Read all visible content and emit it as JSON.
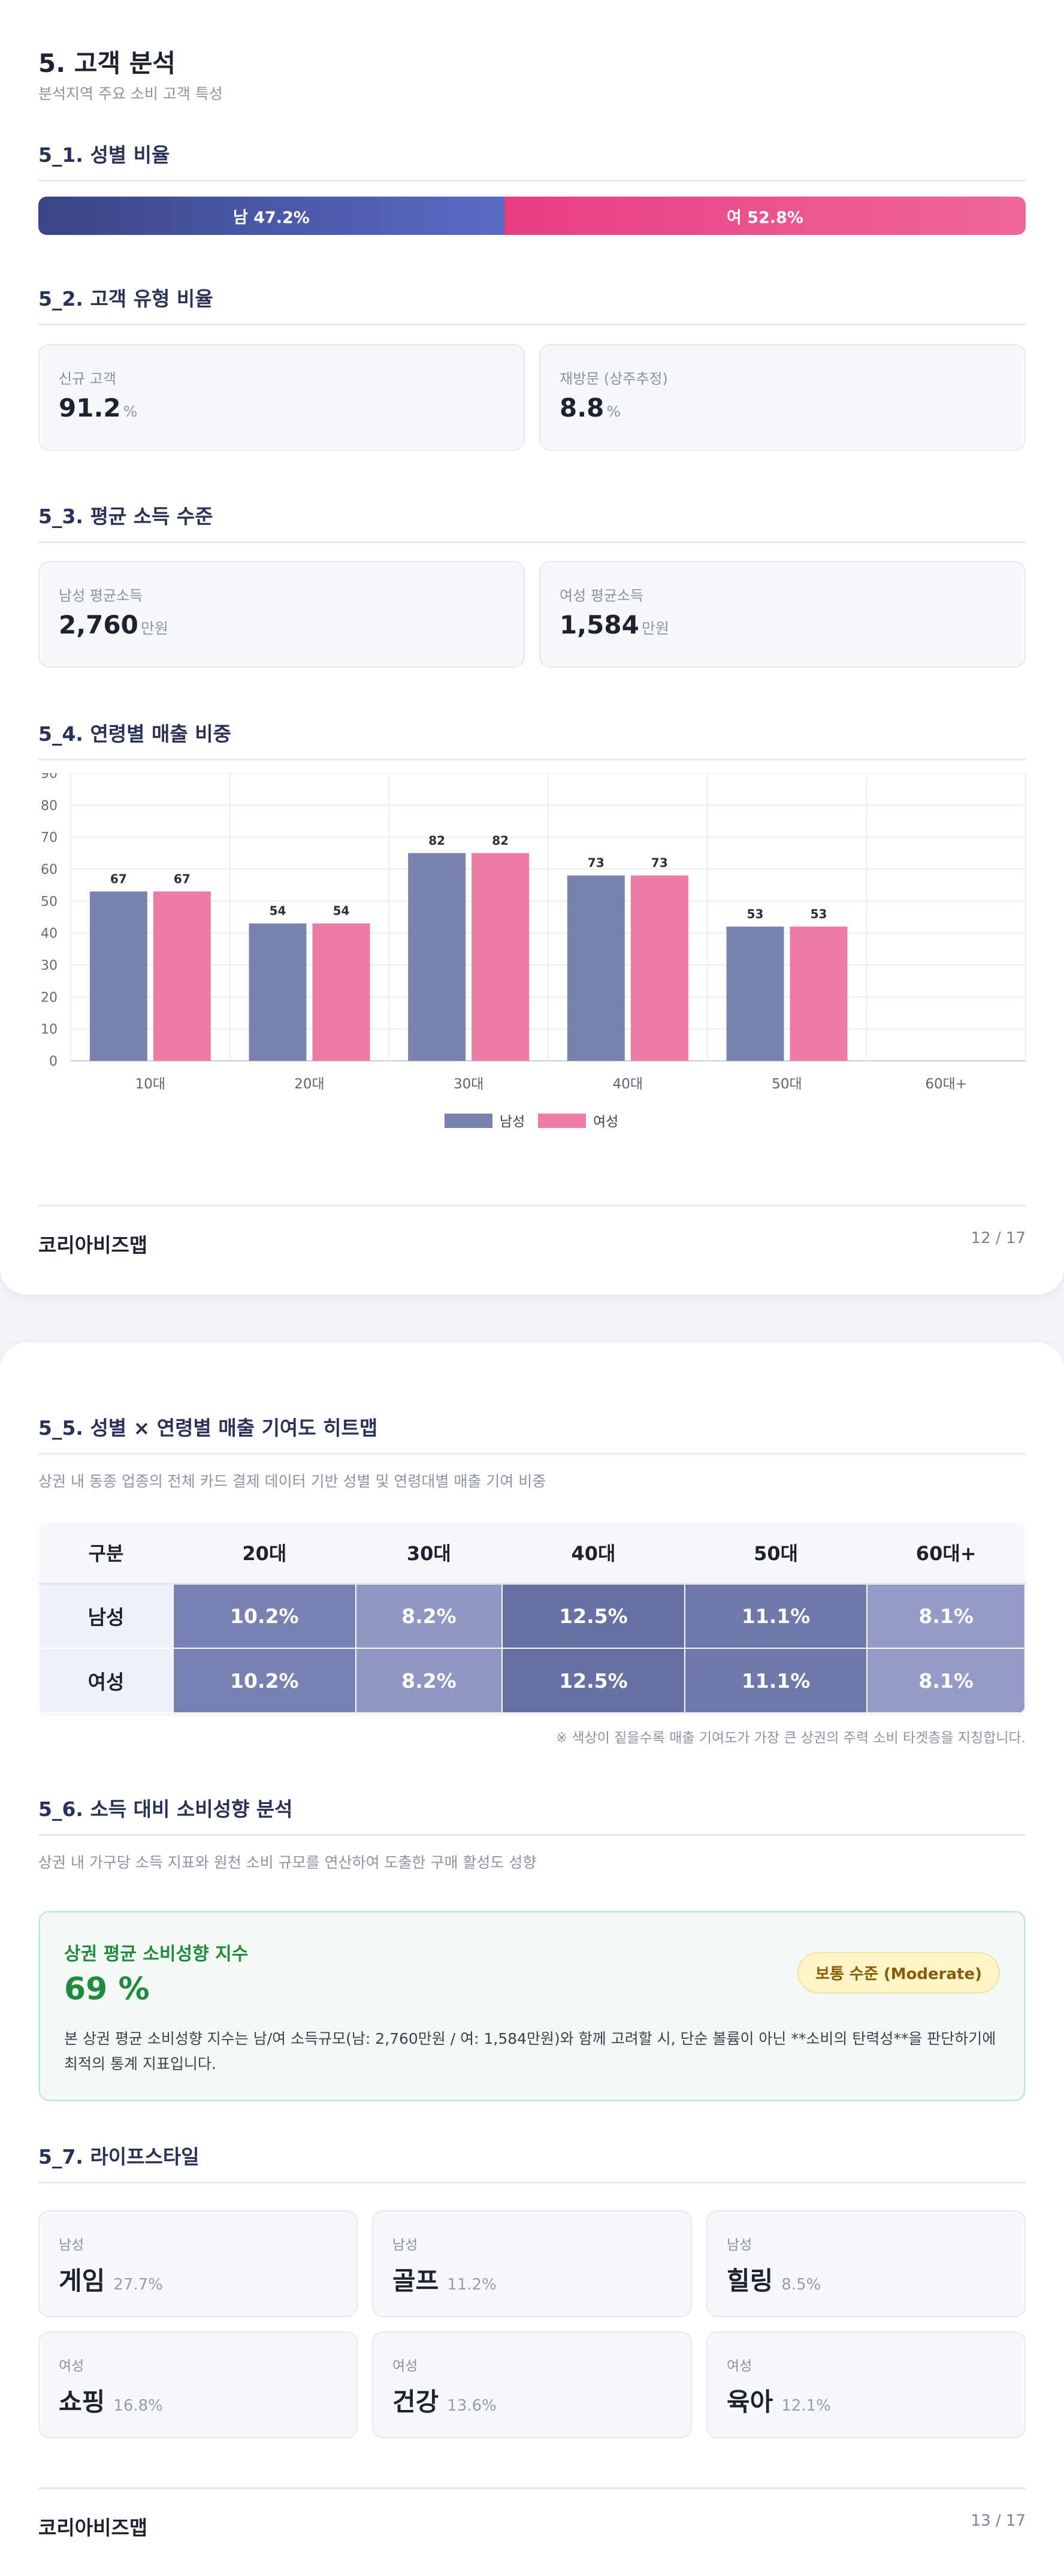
{
  "page1": {
    "title": "5. 고객 분석",
    "subtitle": "분석지역 주요 소비 고객 특성",
    "gender_ratio": {
      "heading": "5_1. 성별 비율",
      "male_label": "남 47.2%",
      "female_label": "여 52.8%",
      "male_share": 47.2,
      "female_share": 52.8,
      "male_color": "#3d4a8f",
      "female_color": "#ec4f86"
    },
    "customer_type": {
      "heading": "5_2. 고객 유형 비율",
      "items": [
        {
          "label": "신규 고객",
          "value": "91.2",
          "unit": "%"
        },
        {
          "label": "재방문 (상주추정)",
          "value": "8.8",
          "unit": "%"
        }
      ]
    },
    "income": {
      "heading": "5_3. 평균 소득 수준",
      "items": [
        {
          "label": "남성 평균소득",
          "value": "2,760",
          "unit": "만원"
        },
        {
          "label": "여성 평균소득",
          "value": "1,584",
          "unit": "만원"
        }
      ]
    },
    "age_sales": {
      "heading": "5_4. 연령별 매출 비중"
    },
    "footer": {
      "brand": "코리아비즈맵",
      "page": "12 / 17"
    }
  },
  "chart_data": {
    "type": "bar",
    "categories": [
      "10대",
      "20대",
      "30대",
      "40대",
      "50대",
      "60대+"
    ],
    "series": [
      {
        "name": "남성",
        "values": [
          67,
          54,
          82,
          73,
          53,
          null
        ],
        "color": "#7a83af"
      },
      {
        "name": "여성",
        "values": [
          67,
          54,
          82,
          73,
          53,
          null
        ],
        "color": "#ef7aa6"
      }
    ],
    "data_labels": [
      67,
      54,
      82,
      73,
      53
    ],
    "bar_heights": [
      53,
      43,
      65,
      58,
      42
    ],
    "ylim": [
      0,
      90
    ],
    "yticks": [
      0,
      10,
      20,
      30,
      40,
      50,
      60,
      70,
      80,
      90
    ],
    "title": "",
    "xlabel": "",
    "ylabel": "",
    "grid": true,
    "legend": "bottom-center"
  },
  "page2": {
    "heatmap": {
      "heading": "5_5. 성별 × 연령별 매출 기여도 히트맵",
      "desc": "상권 내 동종 업종의 전체 카드 결제 데이터 기반 성별 및 연령대별 매출 기여 비중",
      "corner": "구분",
      "columns": [
        "20대",
        "30대",
        "40대",
        "50대",
        "60대+"
      ],
      "rows": [
        {
          "label": "남성",
          "cells": [
            "10.2%",
            "8.2%",
            "12.5%",
            "11.1%",
            "8.1%"
          ]
        },
        {
          "label": "여성",
          "cells": [
            "10.2%",
            "8.2%",
            "12.5%",
            "11.1%",
            "8.1%"
          ]
        }
      ],
      "cell_colors": [
        "#7a82b3",
        "#9097c2",
        "#6870a5",
        "#7077aa",
        "#959bc4"
      ],
      "note": "※ 색상이 짙을수록 매출 기여도가 가장 큰 상권의 주력 소비 타겟층을 지칭합니다."
    },
    "propensity": {
      "heading": "5_6. 소득 대비 소비성향 분석",
      "desc": "상권 내 가구당 소득 지표와 원천 소비 규모를 연산하여 도출한 구매 활성도 성향",
      "card_title": "상권 평균 소비성향 지수",
      "value": "69 %",
      "badge": "보통 수준 (Moderate)",
      "text": "본 상권 평균 소비성향 지수는 남/여 소득규모(남: 2,760만원 / 여: 1,584만원)와 함께 고려할 시, 단순 볼륨이 아닌 **소비의 탄력성**을 판단하기에 최적의 통계 지표입니다.",
      "accent": "#1e8b3d"
    },
    "lifestyle": {
      "heading": "5_7. 라이프스타일",
      "items": [
        {
          "tag": "남성",
          "name": "게임",
          "pct": "27.7%"
        },
        {
          "tag": "남성",
          "name": "골프",
          "pct": "11.2%"
        },
        {
          "tag": "남성",
          "name": "힐링",
          "pct": "8.5%"
        },
        {
          "tag": "여성",
          "name": "쇼핑",
          "pct": "16.8%"
        },
        {
          "tag": "여성",
          "name": "건강",
          "pct": "13.6%"
        },
        {
          "tag": "여성",
          "name": "육아",
          "pct": "12.1%"
        }
      ]
    },
    "footer": {
      "brand": "코리아비즈맵",
      "page": "13 / 17"
    }
  }
}
